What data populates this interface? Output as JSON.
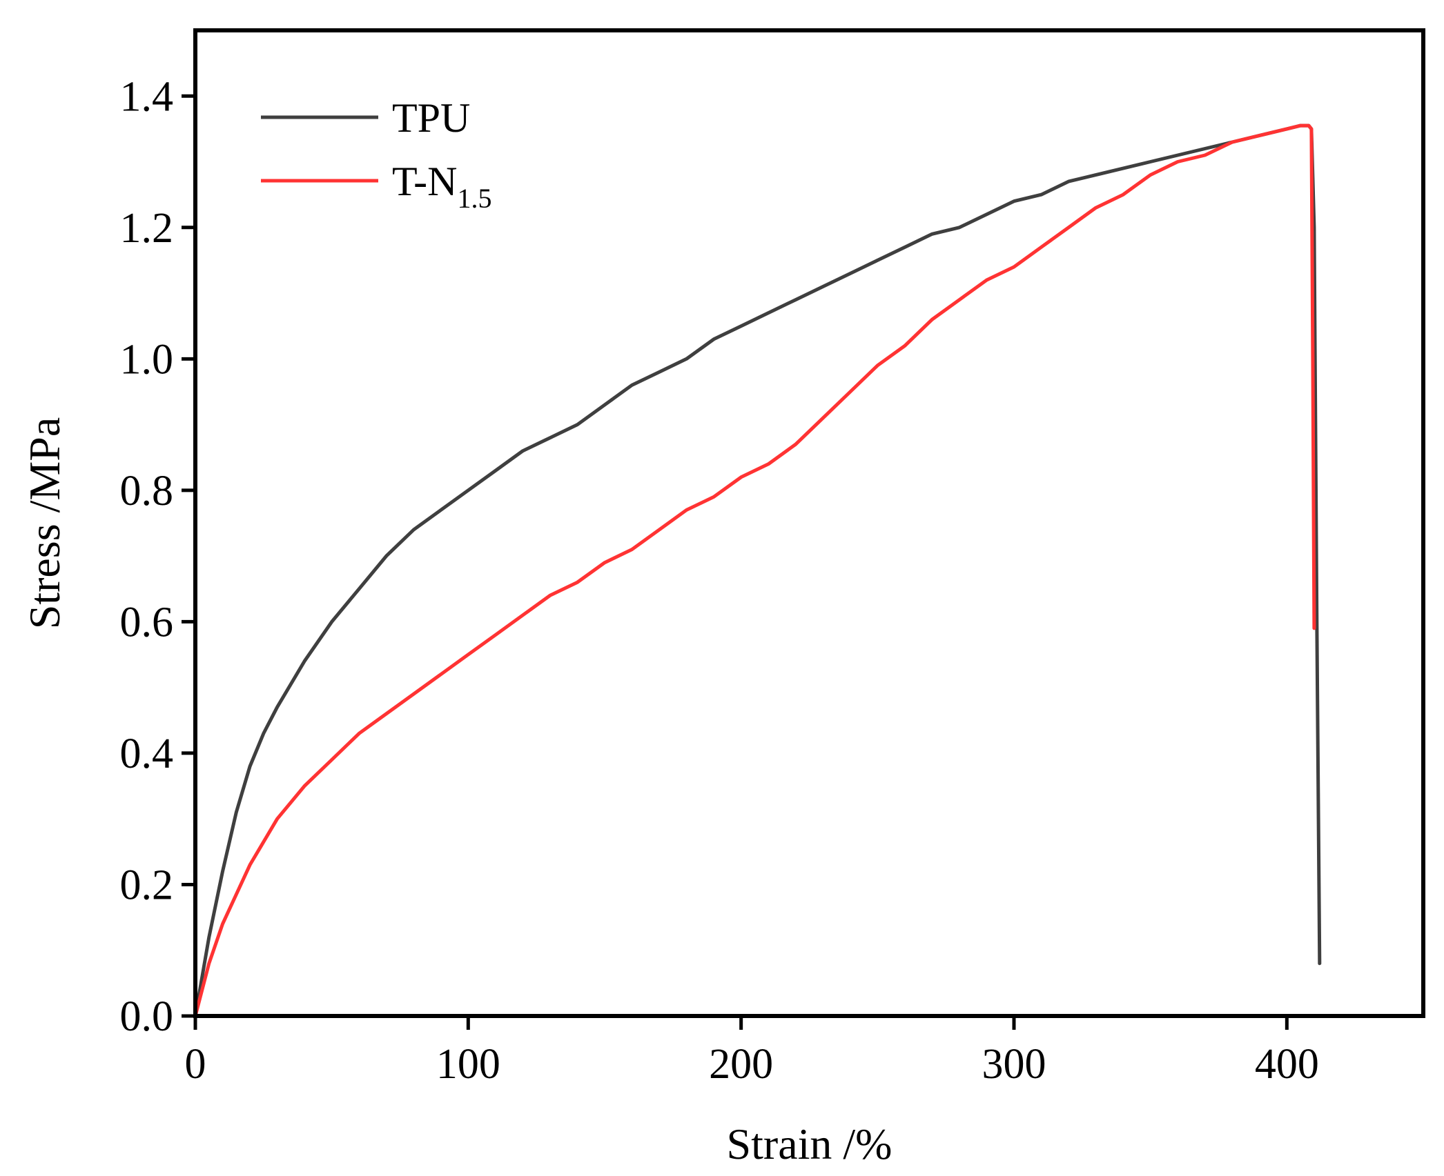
{
  "chart_data": {
    "type": "line",
    "xlabel": "Strain /%",
    "ylabel": "Stress /MPa",
    "xlim": [
      0,
      450
    ],
    "ylim": [
      0,
      1.5
    ],
    "x_ticks": [
      "0",
      "100",
      "200",
      "300",
      "400"
    ],
    "y_ticks": [
      "0.0",
      "0.2",
      "0.4",
      "0.6",
      "0.8",
      "1.0",
      "1.2",
      "1.4"
    ],
    "x_tick_values": [
      0,
      100,
      200,
      300,
      400
    ],
    "y_tick_values": [
      0,
      0.2,
      0.4,
      0.6,
      0.8,
      1.0,
      1.2,
      1.4
    ],
    "grid": false,
    "legend_position": "top-left",
    "series": [
      {
        "name": "TPU",
        "name_main": "TPU",
        "name_sub": "",
        "color": "#3f3f3f",
        "x": [
          0,
          5,
          10,
          15,
          20,
          25,
          30,
          40,
          50,
          60,
          70,
          80,
          90,
          100,
          110,
          120,
          130,
          140,
          150,
          160,
          170,
          180,
          190,
          200,
          210,
          220,
          230,
          240,
          250,
          260,
          270,
          280,
          290,
          300,
          310,
          320,
          330,
          340,
          350,
          360,
          370,
          380,
          390,
          400,
          405,
          408,
          409,
          410,
          411,
          412
        ],
        "y": [
          0,
          0.12,
          0.22,
          0.31,
          0.38,
          0.43,
          0.47,
          0.54,
          0.6,
          0.65,
          0.7,
          0.74,
          0.77,
          0.8,
          0.83,
          0.86,
          0.88,
          0.9,
          0.93,
          0.96,
          0.98,
          1.0,
          1.03,
          1.05,
          1.07,
          1.09,
          1.11,
          1.13,
          1.15,
          1.17,
          1.19,
          1.2,
          1.22,
          1.24,
          1.25,
          1.27,
          1.28,
          1.29,
          1.3,
          1.31,
          1.32,
          1.33,
          1.34,
          1.35,
          1.355,
          1.355,
          1.35,
          1.2,
          0.6,
          0.08
        ]
      },
      {
        "name": "T-N1.5",
        "name_main": "T-N",
        "name_sub": "1.5",
        "color": "#ff3333",
        "x": [
          0,
          5,
          10,
          20,
          30,
          40,
          50,
          60,
          70,
          80,
          90,
          100,
          110,
          120,
          130,
          140,
          150,
          160,
          170,
          180,
          190,
          200,
          210,
          220,
          230,
          240,
          250,
          260,
          270,
          280,
          290,
          300,
          310,
          320,
          330,
          340,
          350,
          360,
          370,
          380,
          390,
          400,
          405,
          408,
          409,
          409.5,
          410
        ],
        "y": [
          0,
          0.08,
          0.14,
          0.23,
          0.3,
          0.35,
          0.39,
          0.43,
          0.46,
          0.49,
          0.52,
          0.55,
          0.58,
          0.61,
          0.64,
          0.66,
          0.69,
          0.71,
          0.74,
          0.77,
          0.79,
          0.82,
          0.84,
          0.87,
          0.91,
          0.95,
          0.99,
          1.02,
          1.06,
          1.09,
          1.12,
          1.14,
          1.17,
          1.2,
          1.23,
          1.25,
          1.28,
          1.3,
          1.31,
          1.33,
          1.34,
          1.35,
          1.355,
          1.355,
          1.35,
          1.0,
          0.59
        ]
      }
    ]
  }
}
